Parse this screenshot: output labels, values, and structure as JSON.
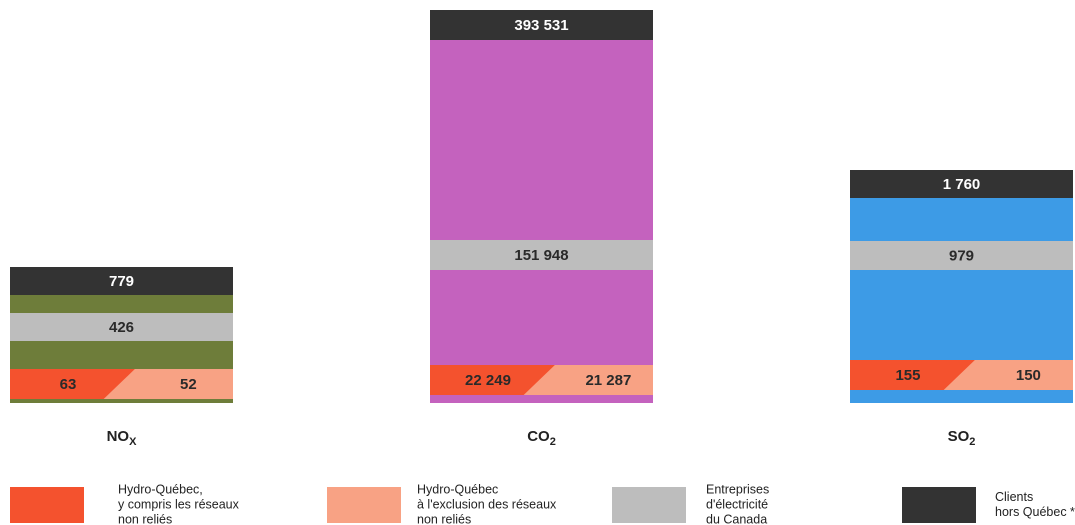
{
  "panels": [
    {
      "label": {
        "main": "NO",
        "sub": "X"
      },
      "color": "#6e7d3a",
      "values": {
        "clients": "779",
        "canada": "426",
        "hq_incl": "63",
        "hq_excl": "52"
      }
    },
    {
      "label": {
        "main": "CO",
        "sub": "2"
      },
      "color": "#c462be",
      "values": {
        "clients": "393 531",
        "canada": "151 948",
        "hq_incl": "22 249",
        "hq_excl": "21 287"
      }
    },
    {
      "label": {
        "main": "SO",
        "sub": "2"
      },
      "color": "#3d9be6",
      "values": {
        "clients": "1 760",
        "canada": "979",
        "hq_incl": "155",
        "hq_excl": "150"
      }
    }
  ],
  "legend": [
    {
      "key": "hq_incl",
      "color": "#f4522e",
      "lines": [
        "Hydro-Québec,",
        "y compris les réseaux",
        "non reliés"
      ]
    },
    {
      "key": "hq_excl",
      "color": "#f8a284",
      "lines": [
        "Hydro-Québec",
        "à l'exclusion des réseaux",
        "non reliés"
      ]
    },
    {
      "key": "canada",
      "color": "#bdbdbd",
      "lines": [
        "Entreprises",
        "d'électricité",
        "du Canada"
      ]
    },
    {
      "key": "clients",
      "color": "#333333",
      "lines": [
        "Clients",
        "hors Québec *"
      ]
    }
  ]
}
